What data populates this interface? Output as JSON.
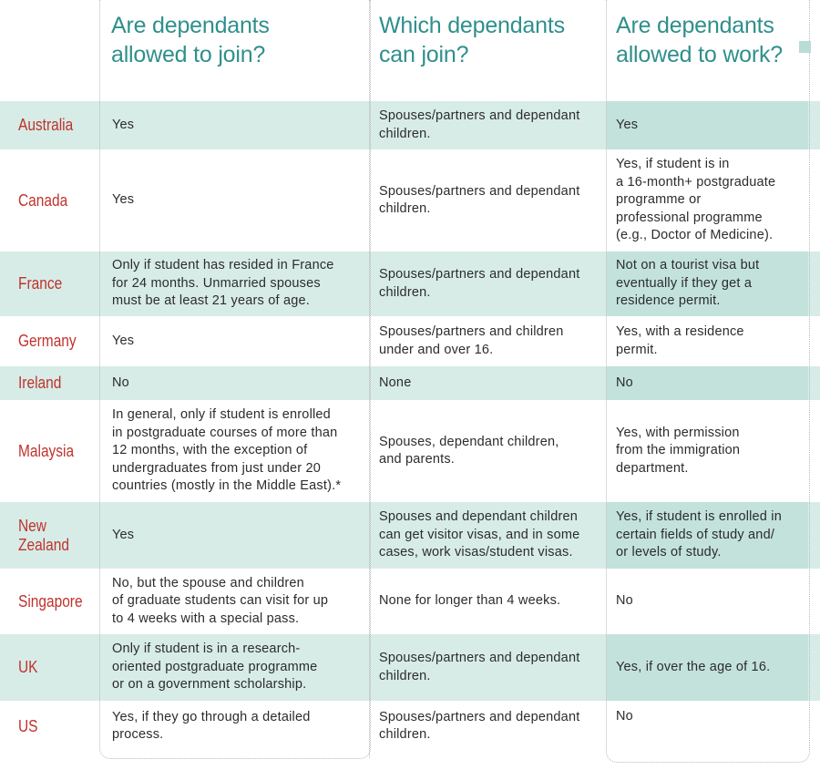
{
  "headers": [
    "Are dependants\nallowed to join?",
    "Which dependants\ncan join?",
    "Are dependants\nallowed to work?"
  ],
  "rows": [
    {
      "country": "Australia",
      "join": "Yes",
      "which": "Spouses/partners and dependant\nchildren.",
      "work": "Yes"
    },
    {
      "country": "Canada",
      "join": "Yes",
      "which": "Spouses/partners and dependant\nchildren.",
      "work": "Yes, if student is in\na 16-month+ postgraduate\nprogramme or\nprofessional programme\n(e.g., Doctor of Medicine)."
    },
    {
      "country": "France",
      "join": "Only if student has resided in France\nfor 24 months. Unmarried spouses\nmust be at least 21 years of age.",
      "which": "Spouses/partners and dependant\nchildren.",
      "work": "Not on a tourist visa but\neventually if they get a\nresidence permit."
    },
    {
      "country": "Germany",
      "join": "Yes",
      "which": "Spouses/partners and children\nunder and over 16.",
      "work": "Yes, with a residence\npermit."
    },
    {
      "country": "Ireland",
      "join": "No",
      "which": "None",
      "work": "No"
    },
    {
      "country": "Malaysia",
      "join": "In general, only if student is enrolled\nin postgraduate courses of more than\n12 months, with the exception of\nundergraduates from just under 20\ncountries (mostly in the Middle East).*",
      "which": "Spouses, dependant children,\nand parents.",
      "work": "Yes, with permission\nfrom the immigration\ndepartment."
    },
    {
      "country": "New\nZealand",
      "join": "Yes",
      "which": "Spouses and dependant children\ncan get visitor visas, and in some\ncases, work visas/student visas.",
      "work": "Yes, if student is enrolled in\ncertain fields of study and/\nor levels of study."
    },
    {
      "country": "Singapore",
      "join": "No, but the spouse and children\nof graduate students can visit for up\nto 4 weeks with a special pass.",
      "which": "None for longer than 4 weeks.",
      "work": "No"
    },
    {
      "country": "UK",
      "join": "Only if student is in a research-\noriented postgraduate programme\nor on a government scholarship.",
      "which": "Spouses/partners and dependant\nchildren.",
      "work": "Yes, if over the age of 16."
    },
    {
      "country": "US",
      "join": "Yes, if they go through a detailed\nprocess.",
      "which": "Spouses/partners and dependant\nchildren.",
      "work": "No"
    }
  ],
  "colors": {
    "header": "#2f8f8c",
    "country": "#c0322d",
    "band": "#d7ece7",
    "band_accent": "#c3e2db"
  }
}
